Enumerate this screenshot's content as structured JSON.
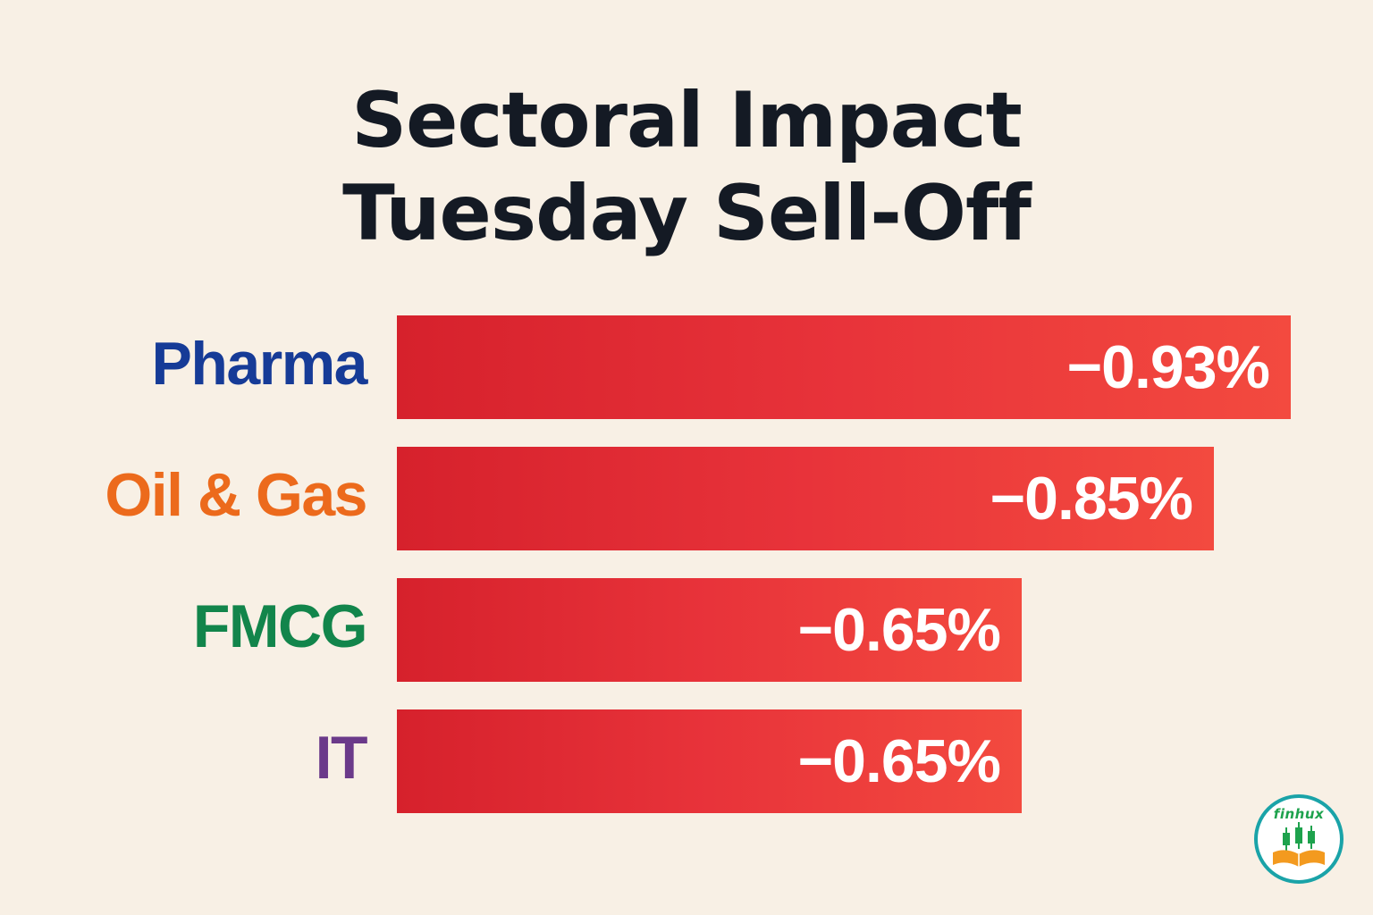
{
  "title": {
    "line1": "Sectoral Impact",
    "line2": "Tuesday Sell-Off"
  },
  "chart_data": {
    "type": "bar",
    "orientation": "horizontal",
    "title": "Sectoral Impact Tuesday Sell-Off",
    "categories": [
      "Pharma",
      "Oil & Gas",
      "FMCG",
      "IT"
    ],
    "values": [
      -0.93,
      -0.85,
      -0.65,
      -0.65
    ],
    "value_labels": [
      "−0.93%",
      "−0.85%",
      "−0.65%",
      "−0.65%"
    ],
    "category_colors": [
      "#163b97",
      "#ec6a1c",
      "#12854b",
      "#6b3a8a"
    ],
    "bar_color": "#e3302f",
    "grid": false,
    "legend": "none",
    "xlabel": "",
    "ylabel": ""
  },
  "logo": {
    "brand": "finhux",
    "icon": "candlestick-book-icon",
    "ring_color": "#1aa3a8",
    "accent_color": "#f39a1f"
  }
}
